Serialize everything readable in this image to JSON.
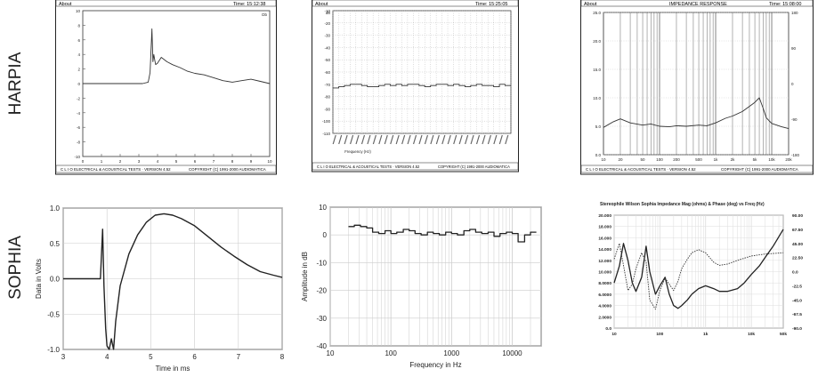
{
  "row_labels": {
    "top": "HARPIA",
    "bottom": "SOPHIA"
  },
  "clio": {
    "about": "About",
    "time1": "Time: 15:12:38",
    "time2": "Time: 15:25:05",
    "time3": "Time: 15:08:00",
    "title3": "IMPEDANCE RESPONSE",
    "footer_a": "C L I O   ELECTRICAL & ACOUSTICAL TESTS · VERSION 4.52",
    "footer_b": "COPYRIGHT (C) 1991-2000 AUDIOMATICA"
  },
  "chart_data": [
    {
      "type": "line",
      "panel": "harpia-step",
      "yticks": [
        10,
        8,
        6,
        4,
        2,
        0,
        -2,
        -4,
        -6,
        -8,
        -10
      ],
      "xticks": [
        0,
        1,
        2,
        3,
        4,
        5,
        6,
        7,
        8,
        9,
        10
      ],
      "ylim": [
        -10,
        10
      ],
      "xlim": [
        0,
        10
      ],
      "corner_label": "Db",
      "series": [
        {
          "x": [
            0,
            3.2,
            3.5,
            3.6,
            3.7,
            3.75,
            3.8,
            3.85,
            3.9,
            4.0,
            4.2,
            4.5,
            4.8,
            5.2,
            5.6,
            6.0,
            6.5,
            7.0,
            7.5,
            8.0,
            8.5,
            9.0,
            9.5,
            10
          ],
          "y": [
            0,
            0,
            0.2,
            1.5,
            7.5,
            3.0,
            4.0,
            3.2,
            2.6,
            2.8,
            3.6,
            3.0,
            2.6,
            2.2,
            1.7,
            1.4,
            1.2,
            0.8,
            0.4,
            0.2,
            0.4,
            0.6,
            0.3,
            0.0
          ]
        }
      ]
    },
    {
      "type": "line",
      "panel": "harpia-freq",
      "yticks": [
        -10,
        -20,
        -30,
        -40,
        -50,
        -60,
        -70,
        -80,
        -90,
        -100,
        -110
      ],
      "ylim": [
        -110,
        -10
      ],
      "ytop_label": "dB",
      "xlabel": "Frequency (Hz)",
      "series": [
        {
          "values": [
            -73,
            -72,
            -71,
            -70,
            -70,
            -71,
            -72,
            -72,
            -71,
            -70,
            -71,
            -70,
            -71,
            -70,
            -70,
            -71,
            -72,
            -71,
            -70,
            -70,
            -71,
            -70,
            -71,
            -72,
            -71,
            -70,
            -71,
            -71,
            -72,
            -70,
            -71
          ]
        }
      ]
    },
    {
      "type": "line",
      "panel": "harpia-impedance",
      "yticks": [
        25,
        20,
        15,
        10,
        5,
        0
      ],
      "ylim": [
        0,
        25
      ],
      "y2ticks": [
        180,
        90,
        0,
        -90,
        -180
      ],
      "xticks": [
        "10",
        "20",
        "50",
        "100",
        "200",
        "500",
        "1k",
        "2k",
        "5k",
        "10k",
        "20k"
      ],
      "xlim": [
        10,
        20000
      ],
      "series": [
        {
          "x": [
            10,
            15,
            20,
            30,
            50,
            70,
            100,
            150,
            200,
            300,
            500,
            700,
            1000,
            1500,
            2000,
            3000,
            4000,
            5000,
            6000,
            7000,
            8000,
            10000,
            15000,
            20000
          ],
          "y": [
            4.8,
            5.8,
            6.3,
            5.6,
            5.2,
            5.4,
            5.0,
            4.9,
            5.1,
            5.0,
            5.2,
            5.1,
            5.6,
            6.4,
            6.8,
            7.6,
            8.5,
            9.2,
            10.0,
            8.2,
            6.5,
            5.5,
            4.9,
            4.6
          ]
        }
      ]
    },
    {
      "type": "line",
      "panel": "sophia-step",
      "xlabel": "Time in ms",
      "ylabel": "Data in Volts",
      "xticks": [
        3,
        4,
        5,
        6,
        7,
        8
      ],
      "yticks": [
        1.0,
        0.5,
        0.0,
        -0.5,
        -1.0
      ],
      "xlim": [
        3,
        8
      ],
      "ylim": [
        -1,
        1
      ],
      "series": [
        {
          "x": [
            3.0,
            3.7,
            3.85,
            3.9,
            3.93,
            3.97,
            4.0,
            4.05,
            4.1,
            4.15,
            4.2,
            4.3,
            4.5,
            4.7,
            4.9,
            5.1,
            5.3,
            5.5,
            5.7,
            6.0,
            6.3,
            6.6,
            6.9,
            7.2,
            7.5,
            7.8,
            8.0
          ],
          "y": [
            0.0,
            0.0,
            0.0,
            0.7,
            -0.1,
            -0.7,
            -0.95,
            -1.0,
            -0.85,
            -1.0,
            -0.6,
            -0.1,
            0.35,
            0.62,
            0.8,
            0.9,
            0.92,
            0.9,
            0.85,
            0.75,
            0.6,
            0.45,
            0.32,
            0.2,
            0.1,
            0.05,
            0.02
          ]
        }
      ]
    },
    {
      "type": "line",
      "panel": "sophia-freq",
      "xlabel": "Frequency in Hz",
      "ylabel": "Amplitude in dB",
      "xticks": [
        "10",
        "100",
        "1000",
        "10000"
      ],
      "yticks": [
        10,
        0,
        -10,
        -20,
        -30,
        -40
      ],
      "xlim": [
        10,
        30000
      ],
      "ylim": [
        -40,
        10
      ],
      "series": [
        {
          "x": [
            20,
            25,
            31.5,
            40,
            50,
            63,
            80,
            100,
            125,
            160,
            200,
            250,
            315,
            400,
            500,
            630,
            800,
            1000,
            1250,
            1600,
            2000,
            2500,
            3150,
            4000,
            5000,
            6300,
            8000,
            10000,
            12500,
            16000,
            20000
          ],
          "y": [
            3,
            3.5,
            3,
            2.5,
            1,
            0.5,
            1.5,
            0.5,
            1,
            2,
            1.5,
            0.5,
            0,
            1,
            0.5,
            0,
            1,
            0.5,
            0,
            1.5,
            2,
            1,
            0.5,
            1,
            -0.5,
            0.5,
            1,
            0.5,
            -2.5,
            0,
            1
          ]
        }
      ]
    },
    {
      "type": "line",
      "panel": "sophia-impedance",
      "title": "Stereophile  Wilson Sophia  Impedance Mag (ohms) & Phase (deg) vs Freq (Hz)",
      "yticks": [
        "20.000",
        "18.000",
        "16.000",
        "14.000",
        "12.000",
        "10.000",
        "8.0000",
        "6.0000",
        "4.0000",
        "2.0000",
        "0.0"
      ],
      "y2ticks": [
        "90.00",
        "67.50",
        "45.00",
        "22.50",
        "0.0",
        "-22.5",
        "-45.0",
        "-67.5",
        "-90.0"
      ],
      "xticks": [
        "10",
        "100",
        "1k",
        "10k",
        "50k"
      ],
      "xlim": [
        10,
        50000
      ],
      "ylim": [
        0,
        20
      ],
      "y2lim": [
        -90,
        90
      ],
      "series": [
        {
          "x": [
            10,
            13,
            16,
            20,
            25,
            30,
            40,
            50,
            60,
            80,
            100,
            130,
            160,
            200,
            250,
            300,
            400,
            500,
            700,
            1000,
            1500,
            2000,
            3000,
            5000,
            7000,
            10000,
            15000,
            20000,
            30000,
            50000
          ],
          "y": [
            8,
            11,
            15,
            12,
            8,
            6.5,
            9,
            14.5,
            10,
            6,
            7.5,
            9,
            6,
            4,
            3.5,
            4,
            5,
            6,
            7,
            7.5,
            7,
            6.5,
            6.5,
            7,
            8,
            9.5,
            11,
            12.5,
            14.5,
            17.5
          ]
        },
        {
          "x": [
            10,
            13,
            16,
            20,
            25,
            30,
            40,
            50,
            60,
            80,
            100,
            130,
            160,
            200,
            250,
            300,
            400,
            500,
            700,
            1000,
            1500,
            2000,
            3000,
            5000,
            10000,
            20000,
            50000
          ],
          "y": [
            20,
            45,
            10,
            -30,
            -20,
            5,
            30,
            15,
            -45,
            -60,
            -30,
            -10,
            -20,
            -30,
            -15,
            5,
            20,
            30,
            35,
            30,
            15,
            10,
            12,
            18,
            25,
            28,
            30
          ]
        }
      ]
    }
  ]
}
